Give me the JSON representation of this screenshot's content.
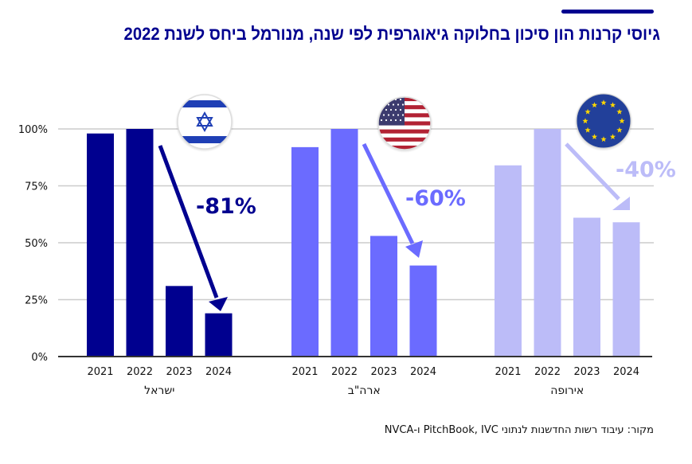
{
  "header": {
    "title": "גיוסי קרנות הון סיכון בחלוקה גיאוגרפית לפי שנה, מנורמל ביחס לשנת 2022"
  },
  "footer": {
    "source": "מקור: עיבוד רשות החדשנות לנתוני PitchBook, IVC ו-NVCA"
  },
  "colors": {
    "title": "#00008f",
    "israel": "#00008f",
    "us": "#6b6bff",
    "europe": "#bcbcf8",
    "grid": "#cccccc",
    "axis": "#333333"
  },
  "chart_data": {
    "type": "bar",
    "title": "גיוסי קרנות הון סיכון בחלוקה גיאוגרפית לפי שנה, מנורמל ביחס לשנת 2022",
    "xlabel": "",
    "ylabel": "",
    "ylim": [
      0,
      100
    ],
    "yticks": [
      0,
      25,
      50,
      75,
      100
    ],
    "ytick_labels": [
      "0%",
      "25%",
      "50%",
      "75%",
      "100%"
    ],
    "grid": true,
    "categories": [
      "2021",
      "2022",
      "2023",
      "2024"
    ],
    "series": [
      {
        "name": "ישראל",
        "flag": "israel-flag",
        "values": [
          98,
          100,
          31,
          19
        ],
        "change_label": "-81%"
      },
      {
        "name": "ארה\"ב",
        "flag": "us-flag",
        "values": [
          92,
          100,
          53,
          40
        ],
        "change_label": "-60%"
      },
      {
        "name": "אירופה",
        "flag": "eu-flag",
        "values": [
          84,
          100,
          61,
          59
        ],
        "change_label": "-40%"
      }
    ]
  }
}
